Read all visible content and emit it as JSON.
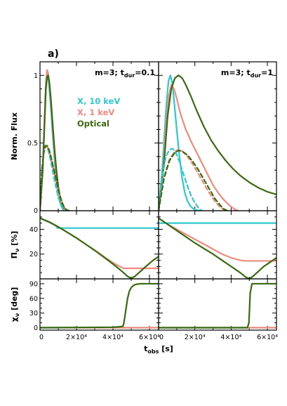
{
  "figure_label": "a)",
  "colors": {
    "x10": "#2ec8d0",
    "x1": "#f08a7c",
    "optical": "#3a6a10"
  },
  "legend": [
    {
      "label": "X, 10 keV",
      "color": "#2ec8d0"
    },
    {
      "label": "X, 1 keV",
      "color": "#f08a7c"
    },
    {
      "label": "Optical",
      "color": "#3a6a10"
    }
  ],
  "chart_data": [
    {
      "type": "line",
      "row": "flux",
      "col": 0,
      "annotation": {
        "prefix": "m=3; t",
        "sub": "dur",
        "suffix": "=0.1"
      },
      "ylabel": "Norm. Flux",
      "ylim": [
        0,
        1.1
      ],
      "yticks": [
        "0",
        "0.5",
        "1"
      ],
      "xlim": [
        0,
        65000
      ],
      "series": [
        {
          "name": "X, 10 keV",
          "style": "solid",
          "x": [
            0,
            1500,
            2500,
            3200,
            3900,
            4400,
            5000,
            6000,
            7000,
            8000,
            9000,
            10000,
            11000,
            12000,
            12600,
            13200,
            14000
          ],
          "y": [
            0,
            0.3,
            0.65,
            0.88,
            1.0,
            1.0,
            0.92,
            0.75,
            0.55,
            0.37,
            0.22,
            0.12,
            0.06,
            0.025,
            0.01,
            0.003,
            0
          ]
        },
        {
          "name": "X, 1 keV",
          "style": "solid",
          "x": [
            0,
            1500,
            2500,
            3200,
            3900,
            4400,
            5000,
            6000,
            7000,
            8000,
            9000,
            10000,
            11000,
            12000,
            13000,
            14000,
            15000
          ],
          "y": [
            0,
            0.32,
            0.7,
            0.95,
            1.04,
            1.02,
            0.96,
            0.8,
            0.6,
            0.42,
            0.27,
            0.16,
            0.08,
            0.035,
            0.012,
            0.003,
            0
          ]
        },
        {
          "name": "Optical",
          "style": "solid",
          "x": [
            0,
            1500,
            2500,
            3200,
            3900,
            4500,
            5200,
            6000,
            7000,
            8000,
            9000,
            10000,
            11000,
            12000,
            13000,
            14000,
            15000
          ],
          "y": [
            0,
            0.3,
            0.65,
            0.9,
            0.99,
            1.0,
            0.94,
            0.82,
            0.63,
            0.45,
            0.3,
            0.18,
            0.1,
            0.05,
            0.02,
            0.006,
            0
          ]
        },
        {
          "name": "X, 10 keV",
          "style": "dashed",
          "x": [
            0,
            1000,
            2000,
            3000,
            4000,
            5000,
            6000,
            7000,
            8000,
            9000,
            10000,
            11000,
            12000,
            13000,
            14000,
            15000
          ],
          "y": [
            0,
            0.3,
            0.44,
            0.48,
            0.47,
            0.42,
            0.36,
            0.29,
            0.22,
            0.16,
            0.1,
            0.06,
            0.03,
            0.012,
            0.004,
            0
          ]
        },
        {
          "name": "X, 1 keV",
          "style": "dashed",
          "x": [
            0,
            1000,
            2000,
            3000,
            4000,
            5000,
            6000,
            7000,
            8000,
            9000,
            10000,
            11000,
            12000,
            13000,
            14000,
            15000,
            16000
          ],
          "y": [
            0,
            0.28,
            0.42,
            0.47,
            0.47,
            0.44,
            0.39,
            0.33,
            0.27,
            0.21,
            0.15,
            0.1,
            0.06,
            0.03,
            0.012,
            0.004,
            0
          ]
        },
        {
          "name": "Optical",
          "style": "dashed",
          "x": [
            0,
            1000,
            2000,
            3000,
            4000,
            5000,
            6000,
            7000,
            8000,
            9000,
            10000,
            11000,
            12000,
            13000,
            14000,
            15000,
            16000
          ],
          "y": [
            0,
            0.28,
            0.43,
            0.48,
            0.48,
            0.45,
            0.4,
            0.34,
            0.28,
            0.22,
            0.16,
            0.11,
            0.065,
            0.033,
            0.014,
            0.004,
            0
          ]
        }
      ]
    },
    {
      "type": "line",
      "row": "flux",
      "col": 1,
      "annotation": {
        "prefix": "m=3; t",
        "sub": "dur",
        "suffix": "=1"
      },
      "ylim": [
        0,
        1.1
      ],
      "xlim": [
        0,
        65000
      ],
      "series": [
        {
          "name": "X, 10 keV",
          "style": "solid",
          "x": [
            0,
            2000,
            3500,
            4500,
            5500,
            6500,
            7500,
            8500,
            10000,
            11500,
            13000,
            14500,
            16000,
            17500,
            19000,
            20500,
            22000,
            23000
          ],
          "y": [
            0,
            0.3,
            0.62,
            0.82,
            0.96,
            1.0,
            0.95,
            0.82,
            0.6,
            0.4,
            0.24,
            0.13,
            0.07,
            0.035,
            0.016,
            0.006,
            0.002,
            0
          ]
        },
        {
          "name": "X, 1 keV",
          "style": "solid",
          "x": [
            0,
            2500,
            4000,
            5500,
            7000,
            8500,
            10000,
            12000,
            15000,
            18000,
            21000,
            24000,
            27000,
            30000,
            33000,
            36000,
            39000,
            42000,
            44000
          ],
          "y": [
            0,
            0.3,
            0.62,
            0.84,
            0.93,
            0.9,
            0.83,
            0.72,
            0.6,
            0.51,
            0.43,
            0.35,
            0.27,
            0.19,
            0.13,
            0.08,
            0.04,
            0.01,
            0
          ]
        },
        {
          "name": "Optical",
          "style": "solid",
          "x": [
            0,
            3000,
            5000,
            7000,
            9000,
            11000,
            13000,
            15000,
            18000,
            21000,
            25000,
            29000,
            33000,
            37000,
            41000,
            45000,
            50000,
            55000,
            60000,
            65000
          ],
          "y": [
            0,
            0.35,
            0.7,
            0.9,
            0.98,
            1.0,
            0.98,
            0.93,
            0.84,
            0.74,
            0.62,
            0.52,
            0.44,
            0.37,
            0.31,
            0.26,
            0.21,
            0.17,
            0.14,
            0.12
          ]
        },
        {
          "name": "X, 10 keV",
          "style": "dashed",
          "x": [
            0,
            2000,
            4000,
            6000,
            7500,
            9000,
            10500,
            12000,
            13500,
            15000,
            16500,
            18000,
            19500,
            21000,
            22000,
            23000,
            24000
          ],
          "y": [
            0,
            0.25,
            0.4,
            0.45,
            0.46,
            0.44,
            0.4,
            0.34,
            0.28,
            0.22,
            0.16,
            0.11,
            0.07,
            0.04,
            0.02,
            0.008,
            0
          ]
        },
        {
          "name": "X, 1 keV",
          "style": "dashed",
          "x": [
            0,
            3000,
            6000,
            9000,
            11000,
            13000,
            16000,
            19000,
            22000,
            25000,
            28000,
            31000,
            34000,
            36000,
            38000
          ],
          "y": [
            0,
            0.25,
            0.38,
            0.44,
            0.45,
            0.44,
            0.4,
            0.34,
            0.27,
            0.2,
            0.13,
            0.07,
            0.025,
            0.008,
            0
          ]
        },
        {
          "name": "Optical",
          "style": "dashed",
          "x": [
            0,
            3000,
            6000,
            9000,
            11000,
            13000,
            16000,
            19000,
            22000,
            25000,
            28000,
            31000,
            34000,
            36000,
            38000
          ],
          "y": [
            0,
            0.24,
            0.37,
            0.43,
            0.445,
            0.44,
            0.41,
            0.36,
            0.3,
            0.23,
            0.16,
            0.09,
            0.04,
            0.012,
            0
          ]
        }
      ]
    },
    {
      "type": "line",
      "row": "pol",
      "col": 0,
      "ylabel": "Π_ν [%]",
      "ylim": [
        0,
        55
      ],
      "yticks": [
        "20",
        "40"
      ],
      "xlim": [
        0,
        65000
      ],
      "series": [
        {
          "name": "X, 10 keV",
          "style": "solid",
          "x": [
            0,
            3000,
            6000,
            9000,
            9500,
            65000
          ],
          "y": [
            49,
            47,
            45,
            42.5,
            41,
            41
          ]
        },
        {
          "name": "X, 1 keV",
          "style": "solid",
          "x": [
            0,
            5000,
            10000,
            15000,
            20000,
            25000,
            30000,
            35000,
            40000,
            45000,
            46000,
            65000
          ],
          "y": [
            49,
            46,
            42,
            37.5,
            33,
            28,
            23,
            18,
            13,
            9,
            8.5,
            8.5
          ]
        },
        {
          "name": "Optical",
          "style": "solid",
          "x": [
            0,
            5000,
            10000,
            15000,
            20000,
            25000,
            30000,
            35000,
            40000,
            45000,
            48000,
            50000,
            52000,
            55000,
            58000,
            62000,
            65000
          ],
          "y": [
            49,
            46,
            42,
            37.5,
            33,
            28,
            23,
            17.5,
            12,
            6,
            2,
            0.5,
            2,
            6,
            10,
            15,
            18
          ]
        }
      ]
    },
    {
      "type": "line",
      "row": "pol",
      "col": 1,
      "ylim": [
        0,
        55
      ],
      "xlim": [
        0,
        65000
      ],
      "series": [
        {
          "name": "X, 10 keV",
          "style": "solid",
          "x": [
            0,
            65000
          ],
          "y": [
            45,
            45
          ]
        },
        {
          "name": "X, 1 keV",
          "style": "solid",
          "x": [
            0,
            5000,
            10000,
            15000,
            20000,
            25000,
            30000,
            35000,
            40000,
            45000,
            48000,
            65000
          ],
          "y": [
            49,
            44,
            40,
            36,
            32,
            28,
            24,
            20,
            17,
            15,
            14.5,
            14.5
          ]
        },
        {
          "name": "Optical",
          "style": "solid",
          "x": [
            0,
            5000,
            10000,
            15000,
            20000,
            25000,
            30000,
            35000,
            40000,
            45000,
            48000,
            50000,
            52000,
            55000,
            58000,
            62000,
            65000
          ],
          "y": [
            49,
            44,
            39,
            34,
            29,
            24.5,
            20,
            15,
            10,
            5,
            1.5,
            0,
            2,
            6,
            10,
            14,
            17
          ]
        }
      ]
    },
    {
      "type": "line",
      "row": "angle",
      "col": 0,
      "ylabel": "χ_ν [deg]",
      "ylim": [
        -5,
        100
      ],
      "yticks": [
        "0",
        "30",
        "60",
        "90"
      ],
      "xlim": [
        0,
        65000
      ],
      "xticks": [
        "0",
        "2×10⁴",
        "4×10⁴",
        "6×10⁴"
      ],
      "series": [
        {
          "name": "X, 10 keV",
          "style": "solid",
          "x": [
            0,
            65000
          ],
          "y": [
            0,
            0
          ]
        },
        {
          "name": "X, 1 keV",
          "style": "solid",
          "x": [
            0,
            65000
          ],
          "y": [
            0,
            0
          ]
        },
        {
          "name": "Optical",
          "style": "solid",
          "x": [
            0,
            40000,
            44000,
            45500,
            46000,
            47000,
            48000,
            49000,
            50000,
            51000,
            52000,
            53000,
            55000,
            58000,
            61000,
            65000
          ],
          "y": [
            0,
            1,
            2,
            3,
            10,
            35,
            60,
            75,
            82,
            86,
            88,
            89,
            90,
            90,
            90,
            90
          ]
        }
      ]
    },
    {
      "type": "line",
      "row": "angle",
      "col": 1,
      "ylim": [
        -5,
        100
      ],
      "xlim": [
        0,
        65000
      ],
      "xticks": [
        "0",
        "2×10⁴",
        "4×10⁴",
        "6×10⁴"
      ],
      "series": [
        {
          "name": "X, 10 keV",
          "style": "solid",
          "x": [
            0,
            65000
          ],
          "y": [
            0,
            0
          ]
        },
        {
          "name": "X, 1 keV",
          "style": "solid",
          "x": [
            0,
            65000
          ],
          "y": [
            0,
            0
          ]
        },
        {
          "name": "Optical",
          "style": "solid",
          "x": [
            0,
            49000,
            49800,
            50500,
            51500,
            65000
          ],
          "y": [
            0,
            0,
            10,
            70,
            90,
            90
          ]
        }
      ]
    }
  ],
  "xlabel": {
    "main": "t",
    "sub": "obs",
    "unit": " [s]"
  }
}
